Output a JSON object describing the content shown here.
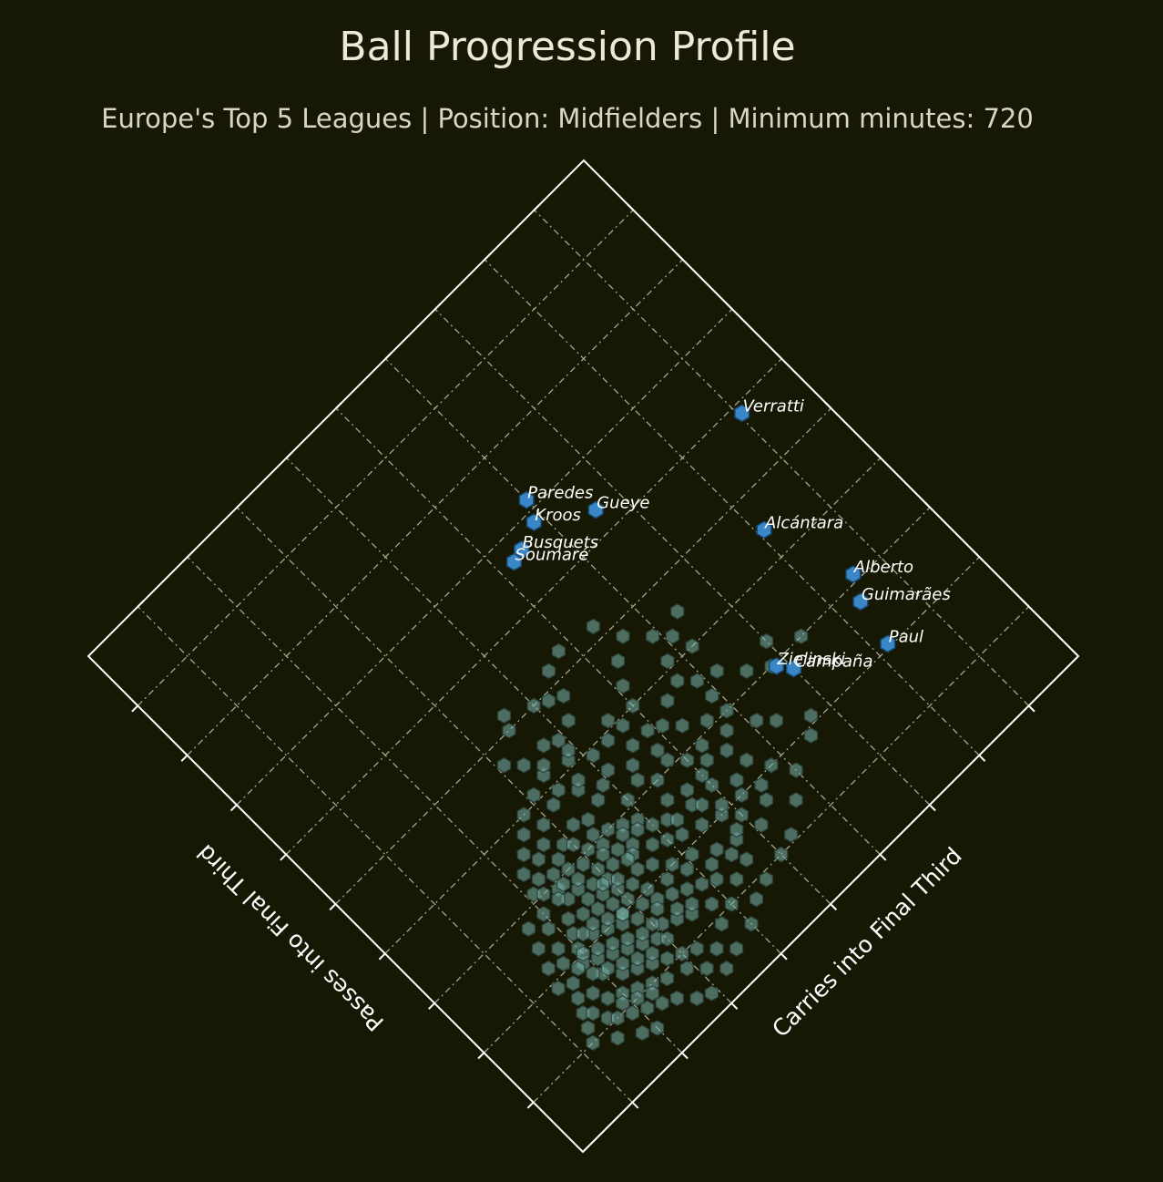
{
  "colors": {
    "background": "#171804",
    "frame": "#ffffff",
    "grid": "#a3a68f",
    "crowd_fill": "#79b5ac",
    "crowd_edge": "#2c4640",
    "highlight_fill": "#3a86c6",
    "highlight_edge": "#174a73",
    "title": "#ece9da",
    "label": "#ffffff"
  },
  "chart_data": {
    "type": "scatter",
    "title": "Ball Progression Profile",
    "subtitle": "Europe's Top 5 Leagues | Position: Midfielders | Minimum minutes: 720",
    "xlabel": "Carries into Final Third",
    "ylabel": "Passes into Final Third",
    "xlim": [
      0,
      10
    ],
    "ylim": [
      0,
      10
    ],
    "grid": true,
    "marker": "hexagon",
    "highlighted": [
      {
        "name": "Verratti",
        "x": 9.05,
        "y": 5.85
      },
      {
        "name": "Paredes",
        "x": 6.0,
        "y": 7.15
      },
      {
        "name": "Kroos",
        "x": 5.85,
        "y": 6.85
      },
      {
        "name": "Gueye",
        "x": 6.6,
        "y": 6.35
      },
      {
        "name": "Busquets",
        "x": 5.45,
        "y": 6.7
      },
      {
        "name": "Soumaré",
        "x": 5.25,
        "y": 6.65
      },
      {
        "name": "Alcántara",
        "x": 8.1,
        "y": 4.45
      },
      {
        "name": "Alberto",
        "x": 8.55,
        "y": 3.1
      },
      {
        "name": "Guimarães",
        "x": 8.35,
        "y": 2.75
      },
      {
        "name": "Paul",
        "x": 8.2,
        "y": 2.05
      },
      {
        "name": "Campaña",
        "x": 7.0,
        "y": 2.75
      },
      {
        "name": "Zielinski",
        "x": 6.85,
        "y": 2.95
      }
    ],
    "others": [
      [
        3.1,
        4.7
      ],
      [
        3.5,
        5.0
      ],
      [
        3.4,
        4.2
      ],
      [
        3.7,
        4.5
      ],
      [
        3.9,
        4.4
      ],
      [
        4.2,
        4.9
      ],
      [
        4.5,
        5.2
      ],
      [
        4.8,
        5.3
      ],
      [
        5.4,
        5.2
      ],
      [
        6.4,
        4.5
      ],
      [
        6.2,
        4.0
      ],
      [
        5.8,
        4.1
      ],
      [
        6.5,
        3.2
      ],
      [
        6.8,
        3.0
      ],
      [
        7.0,
        3.3
      ],
      [
        7.4,
        3.0
      ],
      [
        5.9,
        3.6
      ],
      [
        5.3,
        3.3
      ],
      [
        4.6,
        3.6
      ],
      [
        4.1,
        3.9
      ],
      [
        3.8,
        4.1
      ],
      [
        3.6,
        3.7
      ],
      [
        3.2,
        3.8
      ],
      [
        2.9,
        3.7
      ],
      [
        2.7,
        3.5
      ],
      [
        2.9,
        3.3
      ],
      [
        3.2,
        3.4
      ],
      [
        3.4,
        3.3
      ],
      [
        3.7,
        3.4
      ],
      [
        3.9,
        3.5
      ],
      [
        4.0,
        3.1
      ],
      [
        4.3,
        3.2
      ],
      [
        4.5,
        3.0
      ],
      [
        4.8,
        3.1
      ],
      [
        5.0,
        2.9
      ],
      [
        5.2,
        2.7
      ],
      [
        5.5,
        2.6
      ],
      [
        5.7,
        2.8
      ],
      [
        5.9,
        3.0
      ],
      [
        6.1,
        2.6
      ],
      [
        6.3,
        2.4
      ],
      [
        5.6,
        2.3
      ],
      [
        5.3,
        2.2
      ],
      [
        5.0,
        2.4
      ],
      [
        4.7,
        2.6
      ],
      [
        4.4,
        2.7
      ],
      [
        4.2,
        2.5
      ],
      [
        3.9,
        2.8
      ],
      [
        3.7,
        2.9
      ],
      [
        3.5,
        3.0
      ],
      [
        3.3,
        2.9
      ],
      [
        3.1,
        3.0
      ],
      [
        2.9,
        2.9
      ],
      [
        2.7,
        3.0
      ],
      [
        2.5,
        3.1
      ],
      [
        2.4,
        2.9
      ],
      [
        2.6,
        2.7
      ],
      [
        2.8,
        2.6
      ],
      [
        3.0,
        2.5
      ],
      [
        3.2,
        2.6
      ],
      [
        3.4,
        2.7
      ],
      [
        3.6,
        2.6
      ],
      [
        3.8,
        2.4
      ],
      [
        4.0,
        2.3
      ],
      [
        4.2,
        2.2
      ],
      [
        4.5,
        2.1
      ],
      [
        4.8,
        2.0
      ],
      [
        5.0,
        1.8
      ],
      [
        4.7,
        1.6
      ],
      [
        4.4,
        1.7
      ],
      [
        4.1,
        1.9
      ],
      [
        3.8,
        2.0
      ],
      [
        3.6,
        2.2
      ],
      [
        3.4,
        2.3
      ],
      [
        3.2,
        2.2
      ],
      [
        3.0,
        2.1
      ],
      [
        2.8,
        2.2
      ],
      [
        2.6,
        2.3
      ],
      [
        2.4,
        2.4
      ],
      [
        2.2,
        2.5
      ],
      [
        2.1,
        2.3
      ],
      [
        2.3,
        2.1
      ],
      [
        2.5,
        2.0
      ],
      [
        2.7,
        1.9
      ],
      [
        2.9,
        1.8
      ],
      [
        3.1,
        1.9
      ],
      [
        3.3,
        1.8
      ],
      [
        3.5,
        1.7
      ],
      [
        3.7,
        1.6
      ],
      [
        3.9,
        1.5
      ],
      [
        4.1,
        1.4
      ],
      [
        3.8,
        1.2
      ],
      [
        3.5,
        1.3
      ],
      [
        3.3,
        1.4
      ],
      [
        3.1,
        1.5
      ],
      [
        2.9,
        1.4
      ],
      [
        2.7,
        1.5
      ],
      [
        2.5,
        1.6
      ],
      [
        2.3,
        1.7
      ],
      [
        2.1,
        1.8
      ],
      [
        1.9,
        1.9
      ],
      [
        2.0,
        1.6
      ],
      [
        2.2,
        1.4
      ],
      [
        2.4,
        1.3
      ],
      [
        2.6,
        1.2
      ],
      [
        2.8,
        1.1
      ],
      [
        3.0,
        1.0
      ],
      [
        3.2,
        0.9
      ],
      [
        2.9,
        0.8
      ],
      [
        2.6,
        0.9
      ],
      [
        2.4,
        1.0
      ],
      [
        2.2,
        1.1
      ],
      [
        2.0,
        1.2
      ],
      [
        1.8,
        1.3
      ],
      [
        1.7,
        1.5
      ],
      [
        1.6,
        1.1
      ],
      [
        1.9,
        0.9
      ],
      [
        2.1,
        0.8
      ],
      [
        2.3,
        0.7
      ],
      [
        2.5,
        0.6
      ],
      [
        3.4,
        0.7
      ],
      [
        3.7,
        0.9
      ],
      [
        4.0,
        1.0
      ],
      [
        4.3,
        1.2
      ],
      [
        4.6,
        1.3
      ],
      [
        5.1,
        1.5
      ],
      [
        5.4,
        1.7
      ],
      [
        5.8,
        2.0
      ],
      [
        6.0,
        1.7
      ],
      [
        5.7,
        1.4
      ],
      [
        5.3,
        1.1
      ],
      [
        5.0,
        1.0
      ],
      [
        4.6,
        0.9
      ],
      [
        4.3,
        0.8
      ],
      [
        4.0,
        0.6
      ],
      [
        3.6,
        0.5
      ],
      [
        3.3,
        0.4
      ],
      [
        2.9,
        0.3
      ],
      [
        6.5,
        1.9
      ],
      [
        6.7,
        2.1
      ],
      [
        4.9,
        3.6
      ],
      [
        4.6,
        4.1
      ],
      [
        5.1,
        4.3
      ],
      [
        5.3,
        4.6
      ],
      [
        4.2,
        4.5
      ],
      [
        4.4,
        4.8
      ],
      [
        4.0,
        5.0
      ],
      [
        3.6,
        5.2
      ],
      [
        5.6,
        4.8
      ],
      [
        5.9,
        4.5
      ],
      [
        6.1,
        4.3
      ],
      [
        5.7,
        3.8
      ],
      [
        5.4,
        3.7
      ],
      [
        5.1,
        3.5
      ],
      [
        4.8,
        3.3
      ],
      [
        4.4,
        3.4
      ],
      [
        4.1,
        3.6
      ],
      [
        3.7,
        3.8
      ],
      [
        3.4,
        3.9
      ],
      [
        3.1,
        4.1
      ],
      [
        2.8,
        4.0
      ],
      [
        2.6,
        3.8
      ],
      [
        2.4,
        3.6
      ],
      [
        2.2,
        3.4
      ],
      [
        2.1,
        3.1
      ],
      [
        2.0,
        2.8
      ],
      [
        1.9,
        2.6
      ],
      [
        1.8,
        2.3
      ],
      [
        1.7,
        2.1
      ],
      [
        1.6,
        1.8
      ],
      [
        1.5,
        1.6
      ],
      [
        1.4,
        1.4
      ],
      [
        1.3,
        1.2
      ],
      [
        1.2,
        1.0
      ],
      [
        1.5,
        0.8
      ],
      [
        1.8,
        0.6
      ],
      [
        2.0,
        0.5
      ],
      [
        2.7,
        0.4
      ],
      [
        3.1,
        0.6
      ],
      [
        3.5,
        2.5
      ],
      [
        3.3,
        2.0
      ],
      [
        3.0,
        2.3
      ],
      [
        2.8,
        2.0
      ],
      [
        3.6,
        1.9
      ],
      [
        3.9,
        1.8
      ],
      [
        4.2,
        1.6
      ],
      [
        4.5,
        1.5
      ],
      [
        4.8,
        1.7
      ],
      [
        4.3,
        2.4
      ],
      [
        4.6,
        2.4
      ],
      [
        4.0,
        2.6
      ],
      [
        3.8,
        2.7
      ],
      [
        3.6,
        2.8
      ],
      [
        3.3,
        3.1
      ],
      [
        3.0,
        3.2
      ],
      [
        2.7,
        3.2
      ],
      [
        2.5,
        3.4
      ],
      [
        2.3,
        3.2
      ],
      [
        2.2,
        3.0
      ],
      [
        2.4,
        2.7
      ],
      [
        2.6,
        2.5
      ],
      [
        2.8,
        2.4
      ],
      [
        3.0,
        2.7
      ],
      [
        3.2,
        2.8
      ],
      [
        3.4,
        2.5
      ],
      [
        3.1,
        2.4
      ],
      [
        2.9,
        2.5
      ],
      [
        2.7,
        2.8
      ],
      [
        2.5,
        2.9
      ],
      [
        2.3,
        2.8
      ],
      [
        2.0,
        2.1
      ],
      [
        2.2,
        1.9
      ],
      [
        2.4,
        1.8
      ],
      [
        2.6,
        1.7
      ],
      [
        2.8,
        1.6
      ],
      [
        3.0,
        1.6
      ],
      [
        3.2,
        1.7
      ],
      [
        3.4,
        1.5
      ],
      [
        3.6,
        1.4
      ],
      [
        3.0,
        1.3
      ],
      [
        2.7,
        1.3
      ],
      [
        2.5,
        1.4
      ],
      [
        2.3,
        1.5
      ],
      [
        2.1,
        1.6
      ],
      [
        1.9,
        1.7
      ],
      [
        1.8,
        1.9
      ],
      [
        2.0,
        2.0
      ],
      [
        2.2,
        2.2
      ],
      [
        2.4,
        2.2
      ],
      [
        2.6,
        2.1
      ],
      [
        2.8,
        2.0
      ],
      [
        1.7,
        2.8
      ],
      [
        1.6,
        2.5
      ],
      [
        1.5,
        2.2
      ],
      [
        1.4,
        1.9
      ],
      [
        1.5,
        1.3
      ],
      [
        1.7,
        1.0
      ],
      [
        1.9,
        1.1
      ],
      [
        2.1,
        1.0
      ],
      [
        2.3,
        0.9
      ],
      [
        5.0,
        2.6
      ],
      [
        5.3,
        2.9
      ],
      [
        5.6,
        3.1
      ],
      [
        5.9,
        3.3
      ],
      [
        6.2,
        3.5
      ],
      [
        4.7,
        2.3
      ],
      [
        4.9,
        2.1
      ],
      [
        5.2,
        2.0
      ],
      [
        5.5,
        1.9
      ],
      [
        4.4,
        3.9
      ],
      [
        4.7,
        3.9
      ],
      [
        5.0,
        4.0
      ],
      [
        3.9,
        4.2
      ],
      [
        3.5,
        4.3
      ],
      [
        3.3,
        4.5
      ]
    ]
  }
}
